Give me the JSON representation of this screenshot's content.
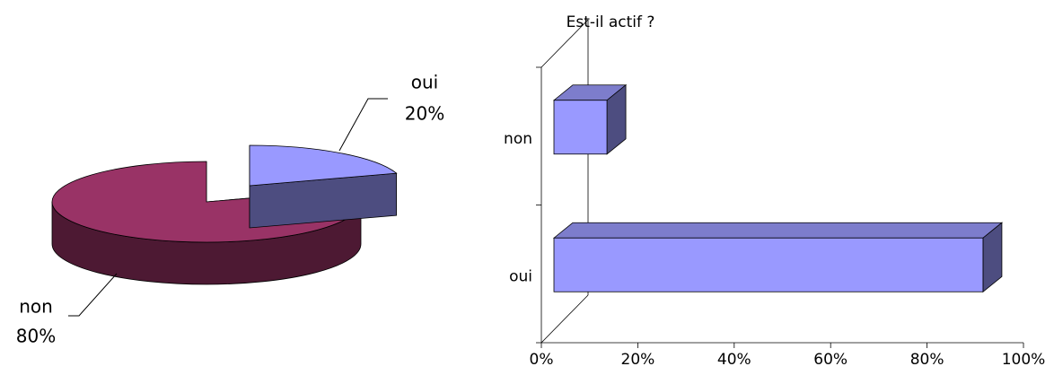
{
  "chart_data": [
    {
      "type": "pie3d",
      "categories": [
        "oui",
        "non"
      ],
      "values": [
        20,
        80
      ],
      "value_labels": [
        "20%",
        "80%"
      ],
      "colors": [
        "#9999ff",
        "#993366"
      ],
      "side_colors": [
        "#4d4d80",
        "#4d1933"
      ]
    },
    {
      "type": "bar3d",
      "title": "Est-il actif ?",
      "categories": [
        "non",
        "oui"
      ],
      "values": [
        11,
        89
      ],
      "color": "#9999ff",
      "top_color": "#7d7dcc",
      "side_color": "#4d4d80",
      "xlim": [
        0,
        100
      ],
      "xticks": [
        {
          "value": 0,
          "label": "0%"
        },
        {
          "value": 20,
          "label": "20%"
        },
        {
          "value": 40,
          "label": "40%"
        },
        {
          "value": 60,
          "label": "60%"
        },
        {
          "value": 80,
          "label": "80%"
        },
        {
          "value": 100,
          "label": "100%"
        }
      ]
    }
  ]
}
